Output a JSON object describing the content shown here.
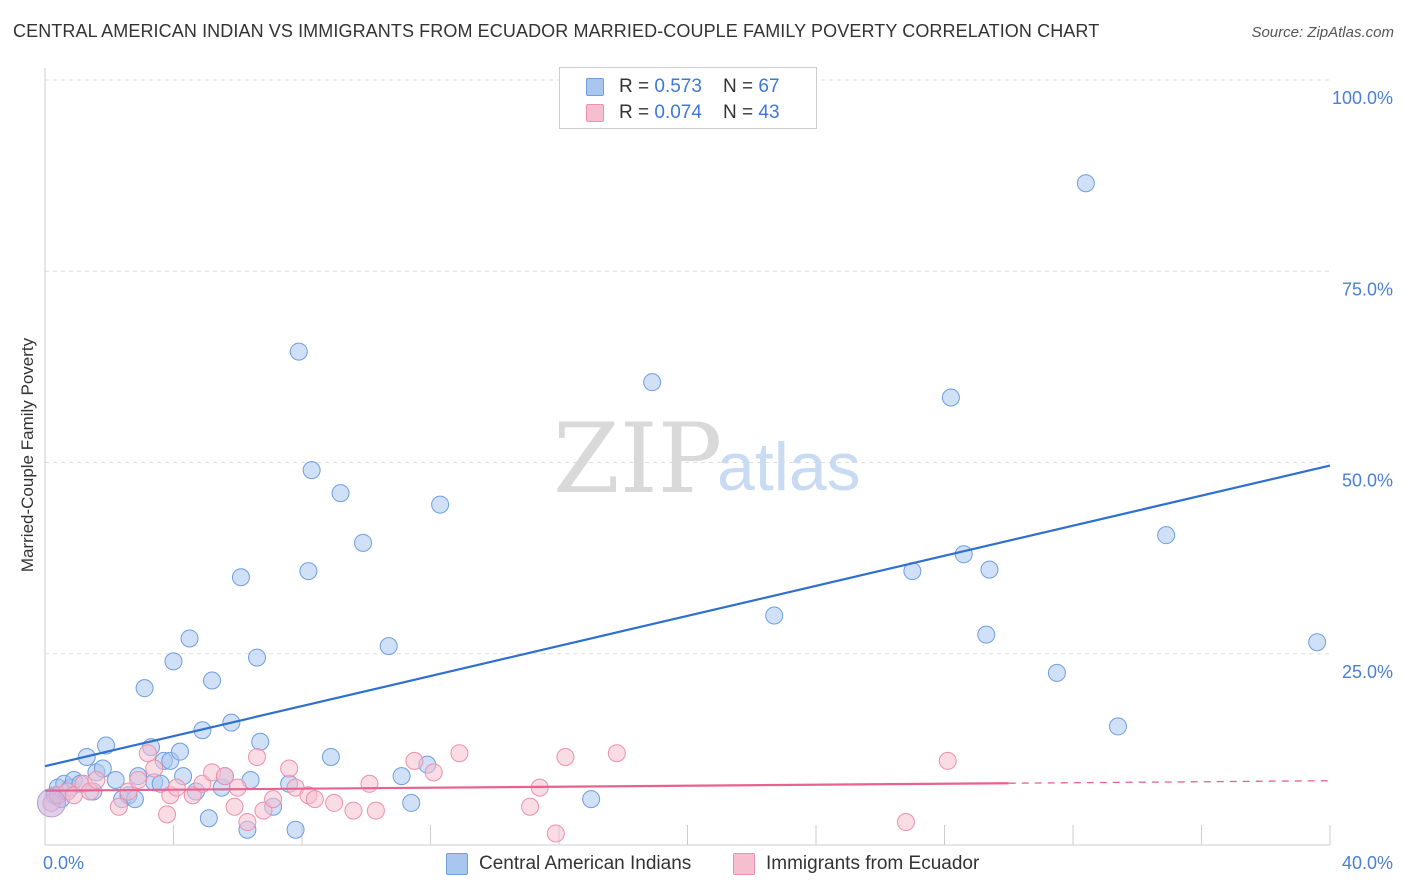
{
  "header": {
    "title": "CENTRAL AMERICAN INDIAN VS IMMIGRANTS FROM ECUADOR MARRIED-COUPLE FAMILY POVERTY CORRELATION CHART",
    "source": "Source: ZipAtlas.com"
  },
  "watermark": {
    "zip": "ZIP",
    "atlas": "atlas"
  },
  "legend": {
    "series1": {
      "r_label": "R = ",
      "r_value": "0.573",
      "n_label": "N = ",
      "n_value": "67"
    },
    "series2": {
      "r_label": "R = ",
      "r_value": "0.074",
      "n_label": "N = ",
      "n_value": "43"
    }
  },
  "bottom_legend": {
    "series1": "Central American Indians",
    "series2": "Immigrants from Ecuador"
  },
  "colors": {
    "series1_fill": "#a9c6ef",
    "series1_stroke": "#6e9ee0",
    "series1_line": "#2f6fd0",
    "series2_fill": "#f6bfd0",
    "series2_stroke": "#ee8fad",
    "series2_line": "#e8628f",
    "grid": "#dddddd",
    "tick_text": "#4a7fd4"
  },
  "chart_data": {
    "type": "scatter",
    "title": "CENTRAL AMERICAN INDIAN VS IMMIGRANTS FROM ECUADOR MARRIED-COUPLE FAMILY POVERTY CORRELATION CHART",
    "xlabel": "",
    "ylabel": "Married-Couple Family Poverty",
    "xlim": [
      0,
      40
    ],
    "ylim": [
      0,
      100
    ],
    "x_tick_labels": {
      "min": "0.0%",
      "max": "40.0%"
    },
    "y_ticks": [
      25,
      50,
      75,
      100
    ],
    "y_tick_labels": [
      "25.0%",
      "50.0%",
      "75.0%",
      "100.0%"
    ],
    "series": [
      {
        "name": "Central American Indians",
        "r": 0.573,
        "n": 67,
        "trend": {
          "x": [
            0,
            40
          ],
          "y": [
            10.3,
            49.6
          ],
          "dashed_from": null
        },
        "points": [
          [
            0.3,
            6.5
          ],
          [
            0.4,
            7.5
          ],
          [
            0.5,
            6.0
          ],
          [
            0.6,
            8.0
          ],
          [
            0.7,
            7.0
          ],
          [
            0.8,
            7.5
          ],
          [
            0.9,
            8.5
          ],
          [
            1.1,
            8.0
          ],
          [
            1.3,
            11.5
          ],
          [
            1.5,
            7.0
          ],
          [
            1.6,
            9.5
          ],
          [
            1.8,
            10.0
          ],
          [
            1.9,
            13.0
          ],
          [
            2.2,
            8.5
          ],
          [
            2.4,
            6.0
          ],
          [
            2.6,
            6.5
          ],
          [
            2.8,
            6.0
          ],
          [
            2.9,
            9.0
          ],
          [
            3.1,
            20.5
          ],
          [
            3.3,
            12.8
          ],
          [
            3.4,
            8.2
          ],
          [
            3.6,
            8.0
          ],
          [
            3.7,
            11.0
          ],
          [
            3.9,
            11.0
          ],
          [
            4.0,
            24.0
          ],
          [
            4.2,
            12.2
          ],
          [
            4.3,
            9.0
          ],
          [
            4.5,
            27.0
          ],
          [
            4.7,
            7.0
          ],
          [
            4.9,
            15.0
          ],
          [
            5.1,
            3.5
          ],
          [
            5.2,
            21.5
          ],
          [
            5.5,
            7.5
          ],
          [
            5.6,
            9.0
          ],
          [
            5.8,
            16.0
          ],
          [
            6.1,
            35.0
          ],
          [
            6.3,
            2.0
          ],
          [
            6.4,
            8.5
          ],
          [
            6.6,
            24.5
          ],
          [
            6.7,
            13.5
          ],
          [
            7.1,
            5.0
          ],
          [
            7.6,
            8.0
          ],
          [
            7.8,
            2.0
          ],
          [
            7.9,
            64.5
          ],
          [
            8.2,
            35.8
          ],
          [
            8.3,
            49.0
          ],
          [
            8.9,
            11.5
          ],
          [
            9.2,
            46.0
          ],
          [
            9.9,
            39.5
          ],
          [
            10.7,
            26.0
          ],
          [
            11.1,
            9.0
          ],
          [
            11.4,
            5.5
          ],
          [
            11.9,
            10.5
          ],
          [
            12.3,
            44.5
          ],
          [
            17.0,
            6.0
          ],
          [
            18.9,
            60.5
          ],
          [
            22.7,
            30.0
          ],
          [
            27.0,
            35.8
          ],
          [
            28.2,
            58.5
          ],
          [
            28.6,
            38.0
          ],
          [
            29.3,
            27.5
          ],
          [
            29.4,
            36.0
          ],
          [
            31.5,
            22.5
          ],
          [
            32.4,
            86.5
          ],
          [
            33.4,
            15.5
          ],
          [
            34.9,
            40.5
          ],
          [
            39.6,
            26.5
          ]
        ]
      },
      {
        "name": "Immigrants from Ecuador",
        "r": 0.074,
        "n": 43,
        "trend": {
          "x": [
            0,
            40
          ],
          "y": [
            7.1,
            8.4
          ],
          "dashed_from": 30.0
        },
        "points": [
          [
            0.2,
            5.5
          ],
          [
            0.4,
            6.5
          ],
          [
            0.7,
            7.0
          ],
          [
            0.9,
            6.5
          ],
          [
            1.2,
            8.0
          ],
          [
            1.4,
            7.0
          ],
          [
            1.6,
            8.5
          ],
          [
            2.3,
            5.0
          ],
          [
            2.6,
            7.0
          ],
          [
            2.9,
            8.5
          ],
          [
            3.2,
            12.0
          ],
          [
            3.4,
            10.0
          ],
          [
            3.8,
            4.0
          ],
          [
            3.9,
            6.5
          ],
          [
            4.1,
            7.5
          ],
          [
            4.6,
            6.5
          ],
          [
            4.9,
            8.0
          ],
          [
            5.2,
            9.5
          ],
          [
            5.6,
            9.0
          ],
          [
            5.9,
            5.0
          ],
          [
            6.0,
            7.5
          ],
          [
            6.3,
            3.0
          ],
          [
            6.6,
            11.5
          ],
          [
            6.8,
            4.5
          ],
          [
            7.1,
            6.0
          ],
          [
            7.6,
            10.0
          ],
          [
            7.8,
            7.5
          ],
          [
            8.2,
            6.5
          ],
          [
            8.4,
            6.0
          ],
          [
            9.0,
            5.5
          ],
          [
            9.6,
            4.5
          ],
          [
            10.1,
            8.0
          ],
          [
            10.3,
            4.5
          ],
          [
            11.5,
            11.0
          ],
          [
            12.1,
            9.5
          ],
          [
            12.9,
            12.0
          ],
          [
            15.1,
            5.0
          ],
          [
            15.4,
            7.5
          ],
          [
            15.9,
            1.5
          ],
          [
            16.2,
            11.5
          ],
          [
            17.8,
            12.0
          ],
          [
            26.8,
            3.0
          ],
          [
            28.1,
            11.0
          ]
        ]
      }
    ]
  }
}
